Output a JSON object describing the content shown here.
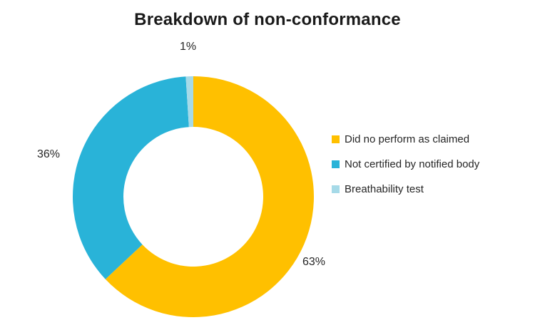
{
  "chart_data": {
    "type": "pie",
    "subtype": "donut",
    "title": "Breakdown of non-conformance",
    "categories": [
      "Did no perform as claimed",
      "Not certified by notified body",
      "Breathability test"
    ],
    "values": [
      63,
      36,
      1
    ],
    "labels": [
      "63%",
      "36%",
      "1%"
    ],
    "colors": [
      "#FFC000",
      "#29B3D8",
      "#A6DAE8"
    ],
    "title_color": "#1A1A1A",
    "label_color": "#262626",
    "legend_position": "right",
    "donut_hole_ratio": 0.58,
    "start_angle_deg": 0,
    "direction": "clockwise"
  }
}
